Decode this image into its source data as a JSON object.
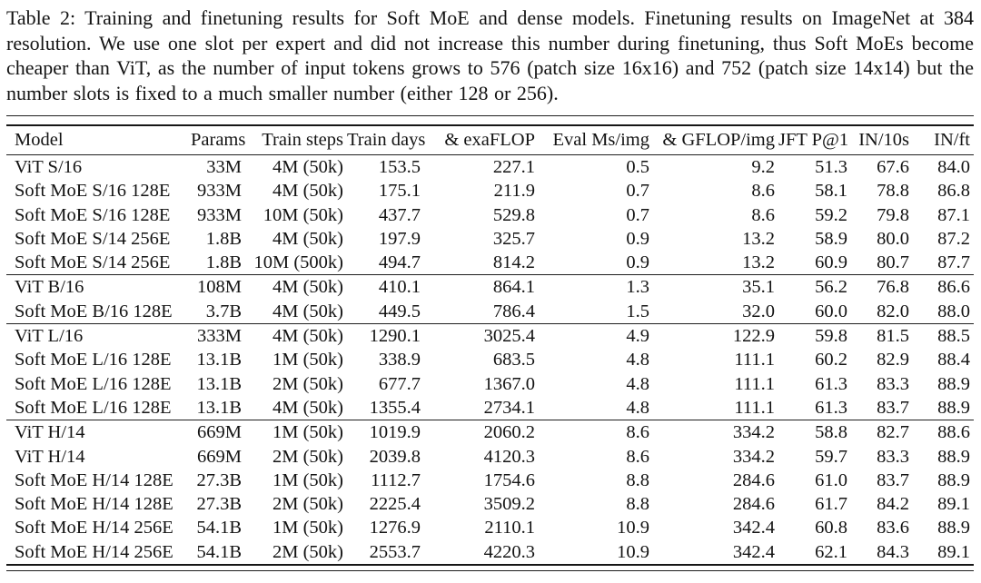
{
  "caption": {
    "text": "Table 2: Training and finetuning results for Soft MoE and dense models. Finetuning results on ImageNet at 384 resolution. We use one slot per expert and did not increase this number during finetuning, thus Soft MoEs become cheaper than ViT, as the number of input tokens grows to 576 (patch size 16x16) and 752 (patch size 14x14) but the number slots is fixed to a much smaller number (either 128 or 256)."
  },
  "table": {
    "columns": [
      "Model",
      "Params",
      "Train steps",
      "Train days",
      "& exaFLOP",
      "Eval Ms/img",
      "& GFLOP/img",
      "JFT P@1",
      "IN/10s",
      "IN/ft"
    ],
    "column_slugs": [
      "model",
      "params",
      "train-steps",
      "train-days",
      "exaflop",
      "eval-ms-img",
      "gflop-img",
      "jft-p-at-1",
      "in-10s",
      "in-ft"
    ],
    "groups": [
      {
        "rows": [
          [
            "ViT S/16",
            "33M",
            "4M (50k)",
            "153.5",
            "227.1",
            "0.5",
            "9.2",
            "51.3",
            "67.6",
            "84.0"
          ],
          [
            "Soft MoE S/16 128E",
            "933M",
            "4M (50k)",
            "175.1",
            "211.9",
            "0.7",
            "8.6",
            "58.1",
            "78.8",
            "86.8"
          ],
          [
            "Soft MoE S/16 128E",
            "933M",
            "10M (50k)",
            "437.7",
            "529.8",
            "0.7",
            "8.6",
            "59.2",
            "79.8",
            "87.1"
          ],
          [
            "Soft MoE S/14 256E",
            "1.8B",
            "4M (50k)",
            "197.9",
            "325.7",
            "0.9",
            "13.2",
            "58.9",
            "80.0",
            "87.2"
          ],
          [
            "Soft MoE S/14 256E",
            "1.8B",
            "10M (500k)",
            "494.7",
            "814.2",
            "0.9",
            "13.2",
            "60.9",
            "80.7",
            "87.7"
          ]
        ]
      },
      {
        "rows": [
          [
            "ViT B/16",
            "108M",
            "4M (50k)",
            "410.1",
            "864.1",
            "1.3",
            "35.1",
            "56.2",
            "76.8",
            "86.6"
          ],
          [
            "Soft MoE B/16 128E",
            "3.7B",
            "4M (50k)",
            "449.5",
            "786.4",
            "1.5",
            "32.0",
            "60.0",
            "82.0",
            "88.0"
          ]
        ]
      },
      {
        "rows": [
          [
            "ViT L/16",
            "333M",
            "4M (50k)",
            "1290.1",
            "3025.4",
            "4.9",
            "122.9",
            "59.8",
            "81.5",
            "88.5"
          ],
          [
            "Soft MoE L/16 128E",
            "13.1B",
            "1M (50k)",
            "338.9",
            "683.5",
            "4.8",
            "111.1",
            "60.2",
            "82.9",
            "88.4"
          ],
          [
            "Soft MoE L/16 128E",
            "13.1B",
            "2M (50k)",
            "677.7",
            "1367.0",
            "4.8",
            "111.1",
            "61.3",
            "83.3",
            "88.9"
          ],
          [
            "Soft MoE L/16 128E",
            "13.1B",
            "4M (50k)",
            "1355.4",
            "2734.1",
            "4.8",
            "111.1",
            "61.3",
            "83.7",
            "88.9"
          ]
        ]
      },
      {
        "rows": [
          [
            "ViT H/14",
            "669M",
            "1M (50k)",
            "1019.9",
            "2060.2",
            "8.6",
            "334.2",
            "58.8",
            "82.7",
            "88.6"
          ],
          [
            "ViT H/14",
            "669M",
            "2M (50k)",
            "2039.8",
            "4120.3",
            "8.6",
            "334.2",
            "59.7",
            "83.3",
            "88.9"
          ],
          [
            "Soft MoE H/14 128E",
            "27.3B",
            "1M (50k)",
            "1112.7",
            "1754.6",
            "8.8",
            "284.6",
            "61.0",
            "83.7",
            "88.9"
          ],
          [
            "Soft MoE H/14 128E",
            "27.3B",
            "2M (50k)",
            "2225.4",
            "3509.2",
            "8.8",
            "284.6",
            "61.7",
            "84.2",
            "89.1"
          ],
          [
            "Soft MoE H/14 256E",
            "54.1B",
            "1M (50k)",
            "1276.9",
            "2110.1",
            "10.9",
            "342.4",
            "60.8",
            "83.6",
            "88.9"
          ],
          [
            "Soft MoE H/14 256E",
            "54.1B",
            "2M (50k)",
            "2553.7",
            "4220.3",
            "10.9",
            "342.4",
            "62.1",
            "84.3",
            "89.1"
          ]
        ]
      }
    ]
  },
  "colors": {
    "background": "#ffffff",
    "text": "#131313",
    "rule": "#1f1f1f"
  }
}
